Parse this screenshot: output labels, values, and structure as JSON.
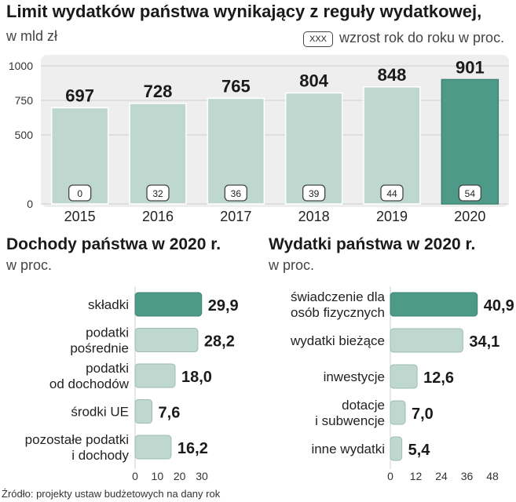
{
  "title": "Limit wydatków państwa wynikający z reguły wydatkowej,",
  "unit": "w mld zł",
  "legend": {
    "box": "XXX",
    "label": "wzrost rok do roku w proc."
  },
  "colors": {
    "bar": "#bfd8cf",
    "highlight": "#4d9a88",
    "grid": "#cfcfcf",
    "panel": "#eeeeee",
    "text": "#1a1a1a"
  },
  "chart_data": [
    {
      "type": "bar",
      "title": "Limit wydatków państwa wynikający z reguły wydatkowej,",
      "ylabel": "w mld zł",
      "categories": [
        "2015",
        "2016",
        "2017",
        "2018",
        "2019",
        "2020"
      ],
      "values": [
        697,
        728,
        765,
        804,
        848,
        901
      ],
      "growth": [
        "0",
        "32",
        "36",
        "39",
        "44",
        "54"
      ],
      "value_labels": [
        "697",
        "728",
        "765",
        "804",
        "848",
        "901"
      ],
      "ylim": [
        0,
        1000
      ],
      "yticks": [
        "0",
        "500",
        "750",
        "1000"
      ],
      "ytick_values": [
        0,
        500,
        750,
        1000
      ],
      "highlight_index": 5
    },
    {
      "type": "bar",
      "orientation": "horizontal",
      "title": "Dochody państwa w 2020 r.",
      "subtitle": "w proc.",
      "categories": [
        [
          "składki"
        ],
        [
          "podatki",
          "pośrednie"
        ],
        [
          "podatki",
          "od dochodów"
        ],
        [
          "środki UE"
        ],
        [
          "pozostałe podatki",
          "i dochody"
        ]
      ],
      "values": [
        29.9,
        28.2,
        18.0,
        7.6,
        16.2
      ],
      "value_labels": [
        "29,9",
        "28,2",
        "18,0",
        "7,6",
        "16,2"
      ],
      "xlim": [
        0,
        30
      ],
      "xticks": [
        "0",
        "10",
        "20",
        "30"
      ],
      "xtick_values": [
        0,
        10,
        20,
        30
      ],
      "highlight_index": 0
    },
    {
      "type": "bar",
      "orientation": "horizontal",
      "title": "Wydatki państwa w 2020 r.",
      "subtitle": "w proc.",
      "categories": [
        [
          "świadczenie dla",
          "osób fizycznych"
        ],
        [
          "wydatki bieżące"
        ],
        [
          "inwestycje"
        ],
        [
          "dotacje",
          "i subwencje"
        ],
        [
          "inne wydatki"
        ]
      ],
      "values": [
        40.9,
        34.1,
        12.6,
        7.0,
        5.4
      ],
      "value_labels": [
        "40,9",
        "34,1",
        "12,6",
        "7,0",
        "5,4"
      ],
      "xlim": [
        0,
        48
      ],
      "xticks": [
        "0",
        "12",
        "24",
        "36",
        "48"
      ],
      "xtick_values": [
        0,
        12,
        24,
        36,
        48
      ],
      "highlight_index": 0
    }
  ],
  "source": "Źródło: projekty ustaw budżetowych na dany rok"
}
